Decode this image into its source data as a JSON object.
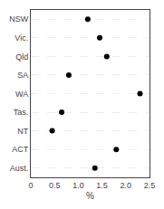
{
  "chart_data": {
    "type": "dot",
    "orientation": "horizontal",
    "categories": [
      "NSW",
      "Vic.",
      "Qld",
      "SA",
      "WA",
      "Tas.",
      "NT",
      "ACT",
      "Aust."
    ],
    "values": [
      1.2,
      1.45,
      1.6,
      0.8,
      2.3,
      0.65,
      0.45,
      1.8,
      1.35
    ],
    "color": "#000000",
    "marker": "circle",
    "xlabel": "%",
    "xlim": [
      0,
      2.5
    ],
    "xticks": [
      0,
      0.5,
      {
        "value": 1,
        "label": "1.0"
      },
      1.5,
      {
        "value": 2,
        "label": "2.0"
      },
      2.5
    ],
    "grid": true
  }
}
